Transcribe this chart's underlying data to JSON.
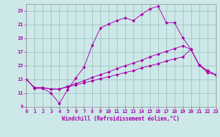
{
  "bg_color": "#cce8e8",
  "grid_color": "#99bbbb",
  "line_color": "#aa00aa",
  "xlabel": "Windchill (Refroidissement éolien,°C)",
  "xlim": [
    0,
    23
  ],
  "ylim": [
    9,
    24
  ],
  "xticks": [
    0,
    1,
    2,
    3,
    4,
    5,
    6,
    7,
    8,
    9,
    10,
    11,
    12,
    13,
    14,
    15,
    16,
    17,
    18,
    19,
    20,
    21,
    22,
    23
  ],
  "yticks": [
    9,
    11,
    13,
    15,
    17,
    19,
    21,
    23
  ],
  "line1_y": [
    13,
    11.7,
    11.7,
    11.0,
    9.5,
    11.5,
    13.2,
    14.8,
    18.0,
    20.5,
    21.1,
    21.6,
    22.0,
    21.6,
    22.5,
    23.3,
    23.7,
    21.3,
    21.3,
    19.1,
    17.4,
    15.1,
    14.0,
    13.7
  ],
  "line2_y": [
    13,
    11.8,
    11.8,
    11.6,
    11.6,
    11.9,
    12.2,
    12.5,
    12.8,
    13.1,
    13.4,
    13.7,
    14.0,
    14.3,
    14.7,
    15.0,
    15.3,
    15.7,
    16.0,
    16.3,
    17.4,
    15.1,
    14.3,
    13.7
  ],
  "line3_y": [
    13,
    11.8,
    11.8,
    11.6,
    11.6,
    12.0,
    12.4,
    12.8,
    13.3,
    13.7,
    14.1,
    14.6,
    15.0,
    15.4,
    15.8,
    16.3,
    16.7,
    17.1,
    17.5,
    17.9,
    17.4,
    15.1,
    14.3,
    13.7
  ],
  "xlabel_fontsize": 5.5,
  "tick_fontsize": 5,
  "marker_size": 2.5,
  "linewidth": 0.7
}
